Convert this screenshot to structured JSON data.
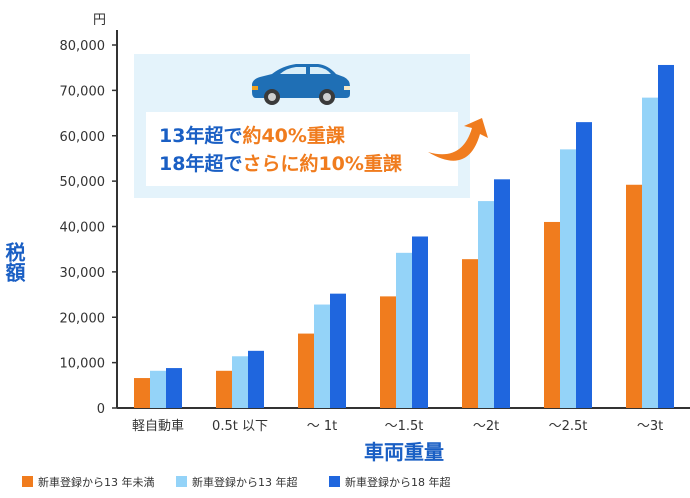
{
  "chart_data": {
    "type": "bar",
    "unit": "円",
    "ylabel": "税額",
    "xlabel": "車両重量",
    "ylim": [
      0,
      80000
    ],
    "yticks": [
      "0",
      "10,000",
      "20,000",
      "30,000",
      "40,000",
      "50,000",
      "60,000",
      "70,000",
      "80,000"
    ],
    "ytick_values": [
      0,
      10000,
      20000,
      30000,
      40000,
      50000,
      60000,
      70000,
      80000
    ],
    "categories": [
      "軽自動車",
      "0.5t 以下",
      "～ 1t",
      "～1.5t",
      "～2t",
      "～2.5t",
      "～3t"
    ],
    "series": [
      {
        "name": "新車登録から13 年未満",
        "color": "#f07c1e",
        "values": [
          6600,
          8200,
          16400,
          24600,
          32800,
          41000,
          49200
        ]
      },
      {
        "name": "新車登録から13 年超",
        "color": "#94d3f8",
        "values": [
          8200,
          11400,
          22800,
          34200,
          45600,
          57000,
          68400
        ]
      },
      {
        "name": "新車登録から18 年超",
        "color": "#1f66de",
        "values": [
          8800,
          12600,
          25200,
          37800,
          50400,
          63000,
          75600
        ]
      }
    ],
    "annotation": {
      "line1_a": "13年超で",
      "line1_b": "約40%重課",
      "line2_a": "18年超で",
      "line2_b": "さらに約10%重課"
    },
    "legend_position": "bottom-left",
    "grid": false
  },
  "colors": {
    "axis_title": "#1a5fc4",
    "annotation_blue": "#1a5fc4",
    "annotation_orange": "#f07c1e",
    "annotation_bg": "#e4f3fb",
    "car_body": "#1f6fb5"
  },
  "icons": {
    "car": "car-icon",
    "arrow": "curved-arrow-icon"
  }
}
